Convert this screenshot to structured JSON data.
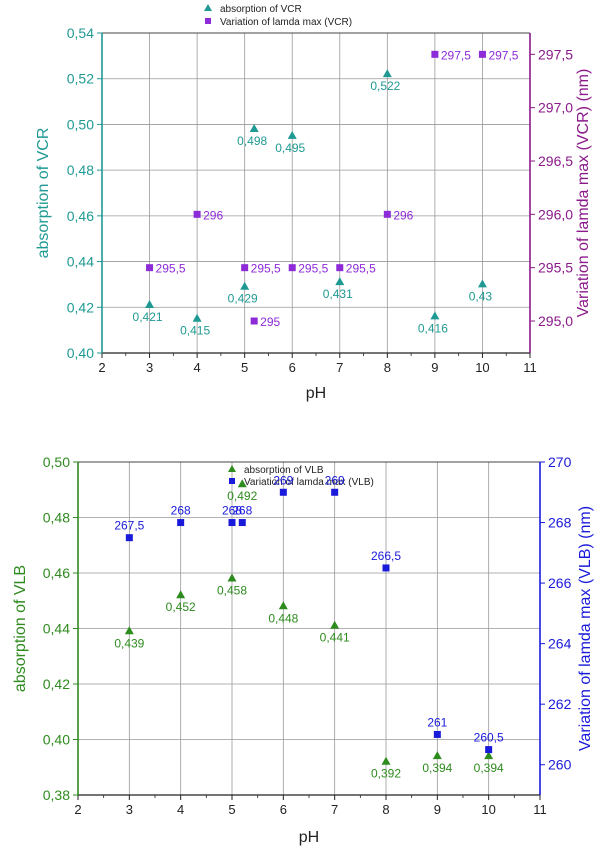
{
  "chart_data": [
    {
      "type": "scatter",
      "xlabel": "pH",
      "ylabel": "absorption of VCR",
      "y2label": "Variation of lamda max (VCR) (nm)",
      "xlim": [
        2,
        11
      ],
      "ylim": [
        0.4,
        0.54
      ],
      "y2lim": [
        294.7,
        297.7
      ],
      "x_ticks": [
        "2",
        "3",
        "4",
        "5",
        "6",
        "7",
        "8",
        "9",
        "10",
        "11"
      ],
      "y_ticks": [
        "0,40",
        "0,42",
        "0,44",
        "0,46",
        "0,48",
        "0,50",
        "0,52",
        "0,54"
      ],
      "y2_ticks": [
        "295,0",
        "295,5",
        "296,0",
        "296,5",
        "297,0",
        "297,5"
      ],
      "grid": true,
      "legend_position": "top-center",
      "colors": {
        "left_axis": "#1f9a93",
        "right_axis": "#8b1a8b",
        "grid": "#999999"
      },
      "series": [
        {
          "name": "absorption of VCR",
          "axis": "left",
          "marker": "triangle",
          "color": "#1f9a93",
          "x": [
            3,
            4,
            5,
            5.2,
            6,
            7,
            8,
            9,
            10
          ],
          "y": [
            0.421,
            0.415,
            0.429,
            0.498,
            0.495,
            0.431,
            0.522,
            0.416,
            0.43
          ],
          "labels": [
            "0,421",
            "0,415",
            "0,429",
            "0,498",
            "0,495",
            "0,431",
            "0,522",
            "0,416",
            "0,43"
          ]
        },
        {
          "name": "Variation of lamda max (VCR)",
          "axis": "right",
          "marker": "square",
          "color": "#8e2bd8",
          "x": [
            3,
            4,
            5,
            5.2,
            6,
            7,
            8,
            9,
            10
          ],
          "y": [
            295.5,
            296,
            295.5,
            295,
            295.5,
            295.5,
            296,
            297.5,
            297.5
          ],
          "labels": [
            "295,5",
            "296",
            "295,5",
            "295",
            "295,5",
            "295,5",
            "296",
            "297,5",
            "297,5"
          ]
        }
      ]
    },
    {
      "type": "scatter",
      "xlabel": "pH",
      "ylabel": "absorption of  VLB",
      "y2label": "Variation of lamda max (VLB) (nm)",
      "xlim": [
        2,
        11
      ],
      "ylim": [
        0.38,
        0.5
      ],
      "y2lim": [
        259,
        270
      ],
      "x_ticks": [
        "2",
        "3",
        "4",
        "5",
        "6",
        "7",
        "8",
        "9",
        "10",
        "11"
      ],
      "y_ticks": [
        "0,38",
        "0,40",
        "0,42",
        "0,44",
        "0,46",
        "0,48",
        "0,50"
      ],
      "y2_ticks": [
        "260",
        "262",
        "264",
        "266",
        "268",
        "270"
      ],
      "grid": true,
      "legend_position": "top-center",
      "colors": {
        "left_axis": "#2e8b1e",
        "right_axis": "#1a1adb",
        "grid": "#999999"
      },
      "series": [
        {
          "name": "absorption of  VLB",
          "axis": "left",
          "marker": "triangle",
          "color": "#2e8b1e",
          "x": [
            3,
            4,
            5,
            5.2,
            6,
            7,
            8,
            9,
            10
          ],
          "y": [
            0.439,
            0.452,
            0.458,
            0.492,
            0.448,
            0.441,
            0.392,
            0.394,
            0.394
          ],
          "labels": [
            "0,439",
            "0,452",
            "0,458",
            "0,492",
            "0,448",
            "0,441",
            "0,392",
            "0,394",
            "0,394"
          ]
        },
        {
          "name": "Variation of lamda max (VLB)",
          "axis": "right",
          "marker": "square",
          "color": "#1a1adb",
          "x": [
            3,
            4,
            5,
            5.2,
            6,
            7,
            8,
            9,
            10
          ],
          "y": [
            267.5,
            268,
            268,
            268,
            269,
            269,
            266.5,
            261,
            260.5
          ],
          "labels": [
            "267,5",
            "268",
            "268",
            "268",
            "269",
            "269",
            "266,5",
            "261",
            "260,5"
          ]
        }
      ]
    }
  ]
}
